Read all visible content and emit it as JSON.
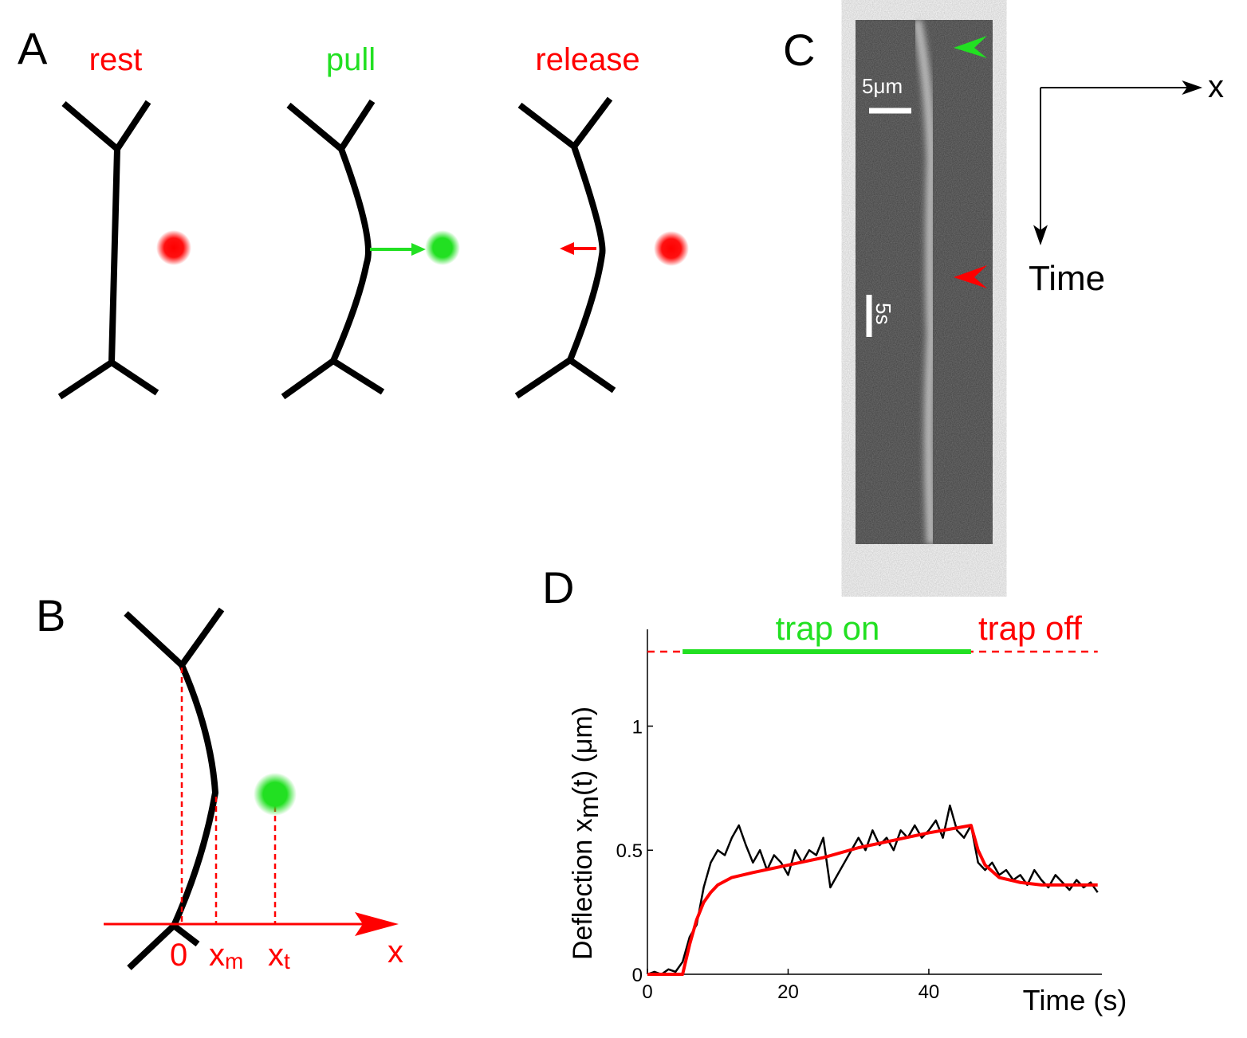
{
  "panel_a": {
    "label": "A",
    "states": [
      "rest",
      "pull",
      "release"
    ]
  },
  "panel_b": {
    "label": "B",
    "origin_label": "0",
    "xm": {
      "base": "x",
      "sub": "m"
    },
    "xt": {
      "base": "x",
      "sub": "t"
    },
    "axis_label": "x"
  },
  "panel_c": {
    "label": "C",
    "scale_x": "5μm",
    "scale_t": "5s",
    "x_label": "x",
    "time_label": "Time"
  },
  "panel_d": {
    "label": "D"
  },
  "chart_data": {
    "type": "line",
    "xlabel": "Time (s)",
    "ylabel": {
      "base": "Deflection x",
      "sub": "m",
      "rest": "(t) (μm)"
    },
    "annotations": [
      {
        "text": "trap on",
        "color": "#22e022"
      },
      {
        "text": "trap off",
        "color": "#ff0000"
      }
    ],
    "xlim": [
      0,
      64.6
    ],
    "ylim": [
      0,
      1.39
    ],
    "xticks": [
      0,
      20,
      40
    ],
    "yticks": [
      0,
      0.5,
      1
    ],
    "series": [
      {
        "color": "#000000",
        "width": 2.5,
        "dashed": false,
        "x": [
          0,
          1,
          2,
          3,
          4,
          5,
          6,
          7,
          8,
          9,
          10,
          11,
          12,
          13,
          14,
          15,
          16,
          17,
          18,
          19,
          20,
          21,
          22,
          23,
          24,
          25,
          26,
          27,
          28,
          29,
          30,
          31,
          32,
          33,
          34,
          35,
          36,
          37,
          38,
          39,
          40,
          41,
          42,
          43,
          44,
          45,
          46,
          47,
          48,
          49,
          50,
          51,
          52,
          53,
          54,
          55,
          56,
          57,
          58,
          59,
          60,
          61,
          62,
          63,
          64
        ],
        "values": [
          0,
          0.01,
          0,
          0.02,
          0.01,
          0.05,
          0.15,
          0.2,
          0.35,
          0.45,
          0.5,
          0.48,
          0.55,
          0.6,
          0.52,
          0.45,
          0.5,
          0.42,
          0.48,
          0.45,
          0.4,
          0.5,
          0.45,
          0.5,
          0.48,
          0.55,
          0.35,
          0.4,
          0.45,
          0.5,
          0.55,
          0.5,
          0.58,
          0.52,
          0.55,
          0.5,
          0.58,
          0.55,
          0.6,
          0.55,
          0.58,
          0.62,
          0.55,
          0.68,
          0.58,
          0.55,
          0.6,
          0.45,
          0.42,
          0.45,
          0.4,
          0.42,
          0.38,
          0.4,
          0.36,
          0.42,
          0.38,
          0.35,
          0.4,
          0.37,
          0.34,
          0.38,
          0.35,
          0.37,
          0.33
        ]
      },
      {
        "color": "#ff0000",
        "width": 4,
        "dashed": false,
        "x": [
          0,
          5,
          6,
          7,
          8,
          9,
          10,
          12,
          15,
          20,
          25,
          30,
          35,
          40,
          46,
          47,
          48,
          50,
          53,
          56,
          64
        ],
        "values": [
          0,
          0,
          0.12,
          0.22,
          0.29,
          0.33,
          0.36,
          0.39,
          0.41,
          0.44,
          0.47,
          0.51,
          0.54,
          0.57,
          0.6,
          0.5,
          0.44,
          0.39,
          0.37,
          0.36,
          0.36
        ]
      },
      {
        "color": "#ff0000",
        "width": 2.5,
        "dashed": true,
        "x": [
          0,
          64
        ],
        "values": [
          1.3,
          1.3
        ]
      },
      {
        "color": "#22e022",
        "width": 6,
        "dashed": false,
        "x": [
          5,
          46
        ],
        "values": [
          1.3,
          1.3
        ]
      }
    ]
  }
}
